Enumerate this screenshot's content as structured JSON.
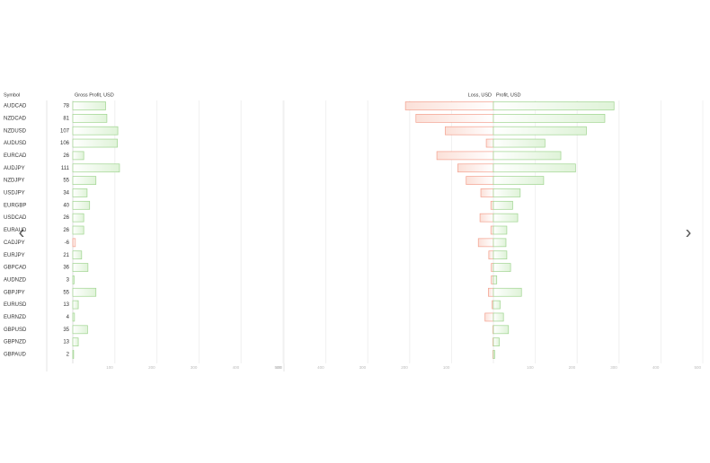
{
  "header": {
    "symbol": "Symbol",
    "gross": "Gross Profit, USD",
    "loss": "Loss, USD",
    "profit": "Profit, USD"
  },
  "rows": [
    {
      "symbol": "AUDCAD",
      "gross": 78,
      "loss": 210,
      "profit": 288
    },
    {
      "symbol": "NZDCAD",
      "gross": 81,
      "loss": 185,
      "profit": 266
    },
    {
      "symbol": "NZDUSD",
      "gross": 107,
      "loss": 115,
      "profit": 222
    },
    {
      "symbol": "AUDUSD",
      "gross": 106,
      "loss": 17,
      "profit": 123
    },
    {
      "symbol": "EURCAD",
      "gross": 26,
      "loss": 135,
      "profit": 161
    },
    {
      "symbol": "AUDJPY",
      "gross": 111,
      "loss": 85,
      "profit": 196
    },
    {
      "symbol": "NZDJPY",
      "gross": 55,
      "loss": 65,
      "profit": 120
    },
    {
      "symbol": "USDJPY",
      "gross": 34,
      "loss": 30,
      "profit": 64
    },
    {
      "symbol": "EURGBP",
      "gross": 40,
      "loss": 6,
      "profit": 46
    },
    {
      "symbol": "USDCAD",
      "gross": 26,
      "loss": 32,
      "profit": 58
    },
    {
      "symbol": "EURAUD",
      "gross": 26,
      "loss": 6,
      "profit": 32
    },
    {
      "symbol": "CADJPY",
      "gross": -6,
      "loss": 36,
      "profit": 30
    },
    {
      "symbol": "EURJPY",
      "gross": 21,
      "loss": 11,
      "profit": 32
    },
    {
      "symbol": "GBPCAD",
      "gross": 36,
      "loss": 5,
      "profit": 41
    },
    {
      "symbol": "AUDNZD",
      "gross": 3,
      "loss": 5,
      "profit": 8
    },
    {
      "symbol": "GBPJPY",
      "gross": 55,
      "loss": 12,
      "profit": 67
    },
    {
      "symbol": "EURUSD",
      "gross": 13,
      "loss": 3,
      "profit": 16
    },
    {
      "symbol": "EURNZD",
      "gross": 4,
      "loss": 20,
      "profit": 24
    },
    {
      "symbol": "GBPUSD",
      "gross": 35,
      "loss": 1,
      "profit": 36
    },
    {
      "symbol": "GBPNZD",
      "gross": 13,
      "loss": 1,
      "profit": 14
    },
    {
      "symbol": "GBPAUD",
      "gross": 2,
      "loss": 1,
      "profit": 3
    }
  ],
  "gross_axis": {
    "xlim": [
      0,
      500
    ],
    "xticks": [
      100,
      200,
      300,
      400,
      500
    ]
  },
  "split_axis": {
    "xlim": [
      0,
      500
    ],
    "xticks": [
      100,
      200,
      300,
      400,
      500
    ]
  }
}
